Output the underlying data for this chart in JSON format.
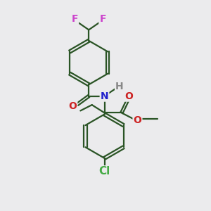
{
  "bg_color": "#ebebed",
  "bond_color": "#2a5425",
  "bond_width": 1.6,
  "atom_colors": {
    "F": "#cc44cc",
    "N": "#2222cc",
    "O": "#cc2222",
    "Cl": "#44aa44",
    "H": "#888888",
    "C": "#2a5425"
  },
  "font_size_atom": 10
}
